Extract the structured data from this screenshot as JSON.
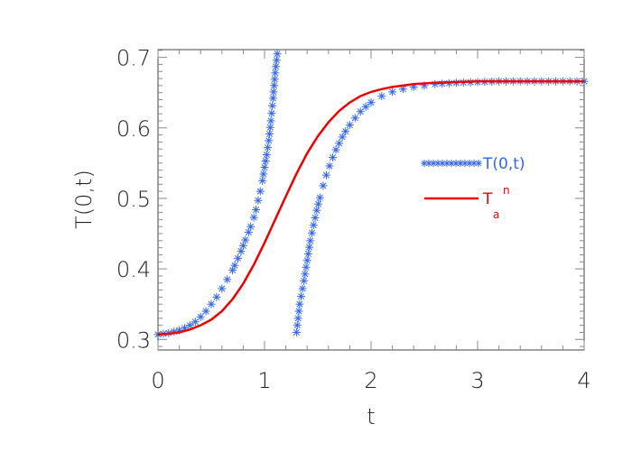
{
  "chart_data": {
    "type": "line",
    "title": "",
    "xlabel": "t",
    "ylabel": "T(0,t)",
    "xlim": [
      0,
      4
    ],
    "ylim": [
      0.285,
      0.711
    ],
    "xticks": [
      0,
      1,
      2,
      3,
      4
    ],
    "xtick_labels": [
      "0",
      "1",
      "2",
      "3",
      "4"
    ],
    "yticks": [
      0.3,
      0.4,
      0.5,
      0.6,
      0.7
    ],
    "ytick_labels": [
      "0.3",
      "0.4",
      "0.5",
      "0.6",
      "0.7"
    ],
    "grid": false,
    "legend_position": "right-center",
    "series": [
      {
        "name": "T(0,t)",
        "style": "asterisk-markers",
        "color": "#3366ee",
        "branches": [
          {
            "x": [
              0.0,
              0.05,
              0.1,
              0.15,
              0.2,
              0.25,
              0.3,
              0.35,
              0.4,
              0.45,
              0.5,
              0.55,
              0.6,
              0.65,
              0.7,
              0.72,
              0.75,
              0.78,
              0.8,
              0.82,
              0.85,
              0.87,
              0.9,
              0.92,
              0.94,
              0.96,
              0.98,
              1.0,
              1.02,
              1.04,
              1.06,
              1.08,
              1.1,
              1.12
            ],
            "y": [
              0.307,
              0.308,
              0.309,
              0.311,
              0.313,
              0.316,
              0.32,
              0.325,
              0.332,
              0.34,
              0.35,
              0.36,
              0.372,
              0.385,
              0.398,
              0.405,
              0.415,
              0.425,
              0.433,
              0.441,
              0.452,
              0.46,
              0.473,
              0.484,
              0.497,
              0.51,
              0.525,
              0.544,
              0.562,
              0.582,
              0.61,
              0.642,
              0.678,
              0.705
            ]
          },
          {
            "x": [
              1.3,
              1.33,
              1.37,
              1.4,
              1.43,
              1.46,
              1.49,
              1.52,
              1.55,
              1.58,
              1.61,
              1.64,
              1.67,
              1.7,
              1.73,
              1.76,
              1.8,
              1.85,
              1.9,
              1.95,
              2.0,
              2.1,
              2.2,
              2.3,
              2.4,
              2.5,
              2.6,
              2.8,
              3.0,
              3.2,
              3.4,
              3.6,
              3.8,
              4.0
            ],
            "y": [
              0.31,
              0.35,
              0.383,
              0.412,
              0.44,
              0.462,
              0.483,
              0.501,
              0.518,
              0.533,
              0.546,
              0.558,
              0.569,
              0.578,
              0.587,
              0.595,
              0.604,
              0.614,
              0.623,
              0.63,
              0.636,
              0.645,
              0.651,
              0.655,
              0.658,
              0.66,
              0.662,
              0.664,
              0.665,
              0.666,
              0.666,
              0.666,
              0.666,
              0.666
            ]
          }
        ]
      },
      {
        "name": "T_a^n",
        "style": "solid-line",
        "color": "#ee0000",
        "x": [
          0.0,
          0.1,
          0.2,
          0.3,
          0.4,
          0.5,
          0.6,
          0.7,
          0.8,
          0.9,
          1.0,
          1.1,
          1.2,
          1.3,
          1.4,
          1.5,
          1.6,
          1.7,
          1.8,
          1.9,
          2.0,
          2.1,
          2.2,
          2.4,
          2.6,
          2.8,
          3.0,
          3.5,
          4.0
        ],
        "y": [
          0.307,
          0.308,
          0.31,
          0.314,
          0.32,
          0.328,
          0.34,
          0.357,
          0.379,
          0.406,
          0.437,
          0.47,
          0.503,
          0.535,
          0.564,
          0.588,
          0.608,
          0.624,
          0.636,
          0.645,
          0.651,
          0.655,
          0.658,
          0.662,
          0.664,
          0.665,
          0.666,
          0.666,
          0.666
        ]
      }
    ],
    "legend": [
      {
        "label_main": "T(0,t)",
        "label_sub": "",
        "label_sup": "",
        "color": "#3366ee",
        "marker": "asterisk"
      },
      {
        "label_main": "T",
        "label_sub": "a",
        "label_sup": "n",
        "color": "#ee0000",
        "marker": "line"
      }
    ]
  }
}
